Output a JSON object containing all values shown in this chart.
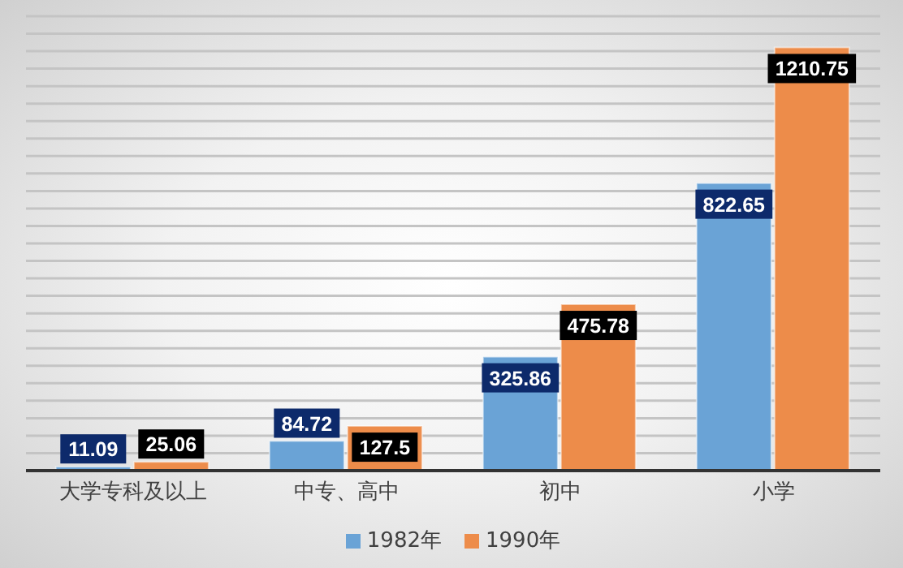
{
  "chart_data": {
    "type": "bar",
    "categories": [
      "大学专科及以上",
      "中专、高中",
      "初中",
      "小学"
    ],
    "series": [
      {
        "name": "1982年",
        "color": "#6aa3d6",
        "values": [
          11.09,
          84.72,
          325.86,
          822.65
        ]
      },
      {
        "name": "1990年",
        "color": "#ed8c4a",
        "values": [
          25.06,
          127.5,
          475.78,
          1210.75
        ]
      }
    ],
    "ylim": [
      0,
      1300
    ],
    "yticks": [
      {
        "value": 0,
        "label": null
      },
      {
        "value": 50,
        "label": null
      },
      {
        "value": 100,
        "label": null
      },
      {
        "value": 150,
        "label": null
      },
      {
        "value": 200,
        "label": null
      },
      {
        "value": 250,
        "label": null
      },
      {
        "value": 300,
        "label": null
      },
      {
        "value": 350,
        "label": null
      },
      {
        "value": 400,
        "label": null
      },
      {
        "value": 450,
        "label": null
      },
      {
        "value": 500,
        "label": null
      },
      {
        "value": 550,
        "label": null
      },
      {
        "value": 600,
        "label": null
      },
      {
        "value": 650,
        "label": null
      },
      {
        "value": 700,
        "label": null
      },
      {
        "value": 750,
        "label": null
      },
      {
        "value": 800,
        "label": null
      },
      {
        "value": 850,
        "label": null
      },
      {
        "value": 900,
        "label": null
      },
      {
        "value": 950,
        "label": null
      },
      {
        "value": 1000,
        "label": null
      },
      {
        "value": 1050,
        "label": null
      },
      {
        "value": 1100,
        "label": null
      },
      {
        "value": 1150,
        "label": null
      },
      {
        "value": 1200,
        "label": null
      },
      {
        "value": 1250,
        "label": null
      },
      {
        "value": 1300,
        "label": null
      }
    ],
    "grid": "y",
    "tick_labels": "x",
    "data_labels": true,
    "legend": "bottom"
  }
}
